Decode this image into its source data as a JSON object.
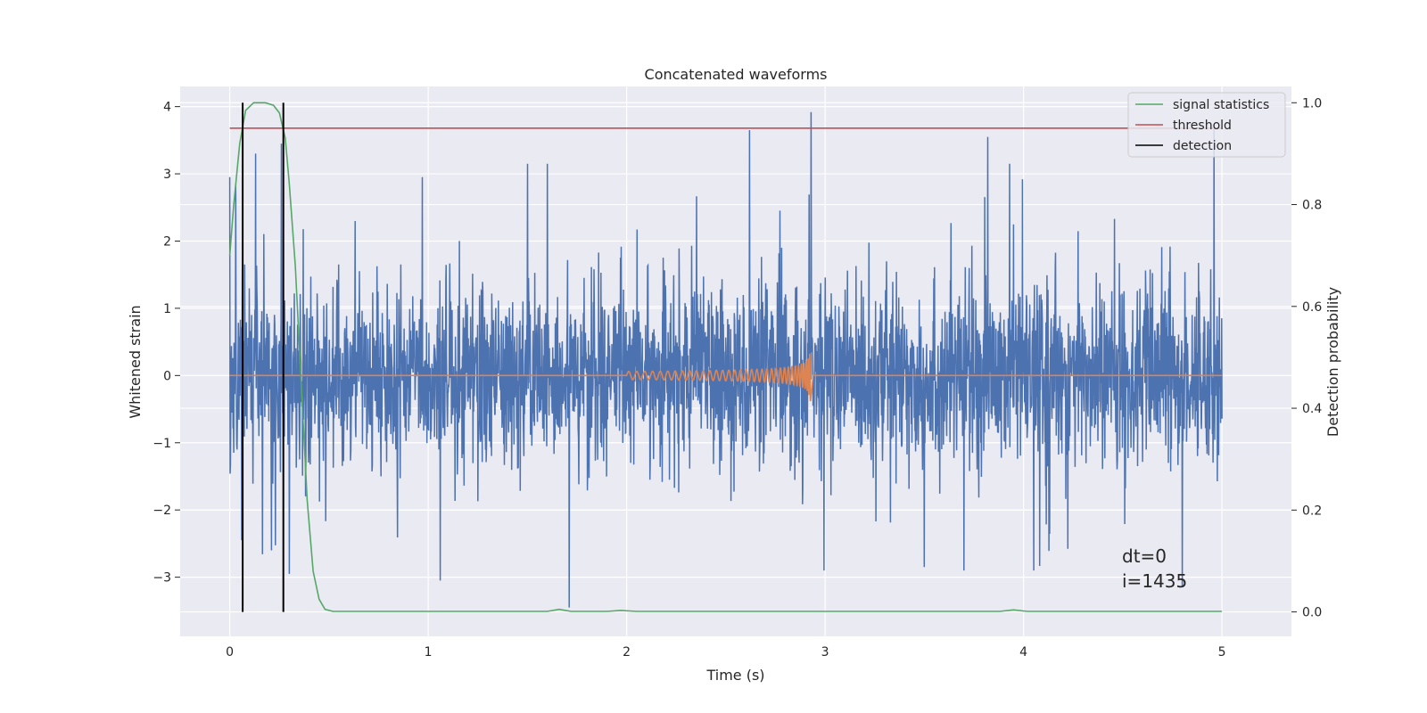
{
  "chart_data": {
    "type": "line",
    "title": "Concatenated waveforms",
    "xlabel": "Time (s)",
    "ylabel": "Whitened strain",
    "ylabel_right": "Detection probability",
    "xlim": [
      -0.25,
      5.35
    ],
    "ylim": [
      -3.88,
      4.3
    ],
    "ylim_right": [
      -0.048,
      1.032
    ],
    "x_ticks": [
      0,
      1,
      2,
      3,
      4,
      5
    ],
    "y_ticks": [
      -3,
      -2,
      -1,
      0,
      1,
      2,
      3,
      4
    ],
    "y_ticks_right": [
      0.0,
      0.2,
      0.4,
      0.6,
      0.8,
      1.0
    ],
    "x_tick_labels": [
      "0",
      "1",
      "2",
      "3",
      "4",
      "5"
    ],
    "y_tick_labels": [
      "−3",
      "−2",
      "−1",
      "0",
      "1",
      "2",
      "3",
      "4"
    ],
    "y_tick_labels_right": [
      "0.0",
      "0.2",
      "0.4",
      "0.6",
      "0.8",
      "1.0"
    ],
    "grid": true,
    "legend_position": "top-right",
    "colors": {
      "background": "#eaeaf2",
      "grid": "#ffffff",
      "strain": "#4c72b0",
      "template": "#dd8452",
      "signal_statistics": "#55a868",
      "threshold": "#c44e52",
      "detection": "#000000"
    },
    "series": [
      {
        "name": "",
        "axis": "left",
        "description_kind": "noise",
        "x_range": [
          0,
          5
        ],
        "sigma": 0.65,
        "peaks": [
          {
            "x": 0.0,
            "y": 2.95
          },
          {
            "x": 0.03,
            "y": 2.85
          },
          {
            "x": 0.13,
            "y": 3.3
          },
          {
            "x": 0.26,
            "y": 3.45
          },
          {
            "x": 0.97,
            "y": 2.95
          },
          {
            "x": 1.5,
            "y": 3.15
          },
          {
            "x": 1.6,
            "y": 3.15
          },
          {
            "x": 2.62,
            "y": 3.65
          },
          {
            "x": 2.93,
            "y": 3.92
          },
          {
            "x": 3.82,
            "y": 3.55
          },
          {
            "x": 3.93,
            "y": 3.15
          },
          {
            "x": 4.96,
            "y": 3.7
          },
          {
            "x": 0.06,
            "y": -2.45
          },
          {
            "x": 0.21,
            "y": -2.6
          },
          {
            "x": 0.3,
            "y": -2.95
          },
          {
            "x": 1.06,
            "y": -3.05
          },
          {
            "x": 1.71,
            "y": -3.45
          },
          {
            "x": 3.5,
            "y": -2.85
          },
          {
            "x": 3.7,
            "y": -2.9
          },
          {
            "x": 4.8,
            "y": -3.15
          }
        ]
      },
      {
        "name": "",
        "axis": "left",
        "description_kind": "chirp",
        "flat_before": 2.0,
        "chirp_start": 2.0,
        "merger": 2.93,
        "peak_amplitude": 0.75,
        "start_amplitude": 0.06
      },
      {
        "name": "signal statistics",
        "axis": "right",
        "points": [
          [
            0.0,
            0.7
          ],
          [
            0.02,
            0.8
          ],
          [
            0.05,
            0.92
          ],
          [
            0.08,
            0.985
          ],
          [
            0.12,
            1.0
          ],
          [
            0.18,
            1.0
          ],
          [
            0.22,
            0.995
          ],
          [
            0.25,
            0.98
          ],
          [
            0.28,
            0.93
          ],
          [
            0.3,
            0.84
          ],
          [
            0.33,
            0.68
          ],
          [
            0.36,
            0.45
          ],
          [
            0.39,
            0.22
          ],
          [
            0.42,
            0.08
          ],
          [
            0.45,
            0.025
          ],
          [
            0.48,
            0.005
          ],
          [
            0.52,
            0.001
          ],
          [
            1.6,
            0.001
          ],
          [
            1.66,
            0.005
          ],
          [
            1.72,
            0.001
          ],
          [
            1.9,
            0.001
          ],
          [
            1.97,
            0.003
          ],
          [
            2.05,
            0.001
          ],
          [
            3.88,
            0.001
          ],
          [
            3.95,
            0.004
          ],
          [
            4.02,
            0.001
          ],
          [
            5.0,
            0.001
          ]
        ]
      },
      {
        "name": "threshold",
        "axis": "right",
        "value": 0.95,
        "x_range": [
          0,
          5
        ]
      },
      {
        "name": "detection",
        "axis": "right",
        "x": [
          0.065,
          0.27
        ],
        "y_range": [
          0.0,
          1.0
        ]
      }
    ],
    "legend": [
      "signal statistics",
      "threshold",
      "detection"
    ],
    "annotations": [
      "dt=0",
      "i=1435"
    ]
  }
}
